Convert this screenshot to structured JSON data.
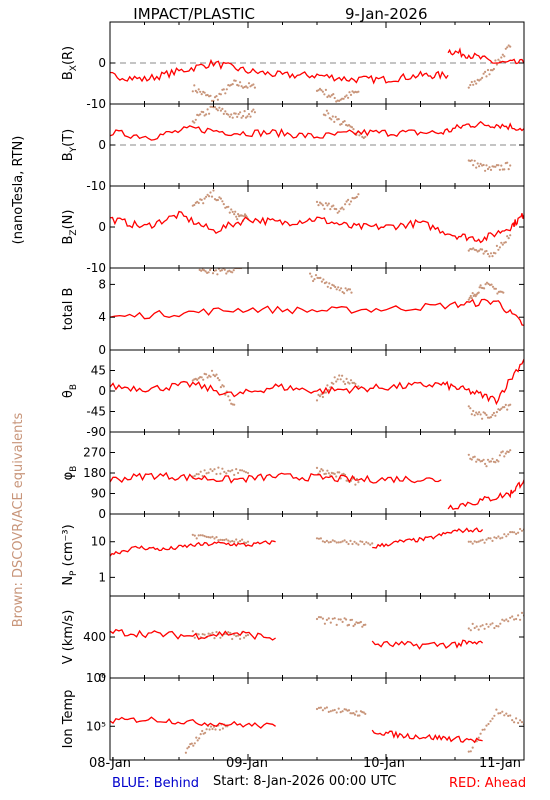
{
  "header": {
    "instrument": "IMPACT/PLASTIC",
    "date": "9-Jan-2026"
  },
  "left_labels": {
    "units": "(nanoTesla, RTN)",
    "equivalents": "Brown: DSCOVR/ACE equivalents"
  },
  "footer": {
    "blue_label": "BLUE: Behind",
    "start_label": "Start:  8-Jan-2026 00:00 UTC",
    "red_label": "RED: Ahead"
  },
  "colors": {
    "ahead": "#ff0000",
    "dscovr": "#c8957a",
    "behind": "#0000cc",
    "axis": "#000000"
  },
  "chart_data": {
    "type": "line",
    "x_axis": {
      "ticks": [
        "08-Jan",
        "09-Jan",
        "10-Jan",
        "11-Jan"
      ],
      "range_days": [
        0,
        3
      ]
    },
    "panels": [
      {
        "id": "bx",
        "ylabel": "B",
        "ylabel_sub": "X",
        "ylabel_suffix": "(R)",
        "ylim": [
          -10,
          10
        ],
        "yticks": [
          "0",
          "-10"
        ],
        "ytick_values": [
          0,
          -10
        ],
        "zero_line": true,
        "ahead_segments": [
          {
            "x": [
              0.0,
              0.25,
              0.5,
              0.75,
              1.0,
              1.25,
              1.5,
              1.75,
              2.0,
              2.25,
              2.45
            ],
            "y": [
              -3,
              -4,
              -2,
              0,
              -2,
              -3,
              -3,
              -4,
              -4,
              -3,
              -3
            ]
          },
          {
            "x": [
              2.45,
              2.6,
              2.8,
              3.0
            ],
            "y": [
              3,
              2,
              0,
              0
            ]
          }
        ],
        "dscovr_segments": [
          {
            "x": [
              0.6,
              0.75,
              0.9,
              1.05
            ],
            "y": [
              -6,
              -9,
              -5,
              -6
            ]
          },
          {
            "x": [
              1.5,
              1.65,
              1.8
            ],
            "y": [
              -6,
              -9,
              -7
            ]
          },
          {
            "x": [
              2.6,
              2.75,
              2.9
            ],
            "y": [
              -6,
              -2,
              4
            ]
          }
        ]
      },
      {
        "id": "by",
        "ylabel": "B",
        "ylabel_sub": "Y",
        "ylabel_suffix": "(T)",
        "ylim": [
          -10,
          10
        ],
        "yticks": [
          "0",
          "-10"
        ],
        "ytick_values": [
          0,
          -10
        ],
        "zero_line": true,
        "ahead_segments": [
          {
            "x": [
              0.0,
              0.3,
              0.6,
              0.9,
              1.2,
              1.5,
              1.8,
              2.1,
              2.4,
              2.6,
              2.8,
              3.0
            ],
            "y": [
              3,
              2,
              4,
              3,
              3,
              2,
              3,
              3,
              3,
              5,
              5,
              4
            ]
          }
        ],
        "dscovr_segments": [
          {
            "x": [
              0.6,
              0.75,
              0.9,
              1.05
            ],
            "y": [
              6,
              9,
              7,
              8
            ]
          },
          {
            "x": [
              1.55,
              1.7,
              1.85
            ],
            "y": [
              8,
              5,
              2
            ]
          },
          {
            "x": [
              2.6,
              2.75,
              2.9
            ],
            "y": [
              -4,
              -6,
              -5
            ]
          }
        ]
      },
      {
        "id": "bz",
        "ylabel": "B",
        "ylabel_sub": "Z",
        "ylabel_suffix": "(N)",
        "ylim": [
          -10,
          10
        ],
        "yticks": [
          "0",
          "-10"
        ],
        "ytick_values": [
          0,
          -10
        ],
        "zero_line": false,
        "ahead_segments": [
          {
            "x": [
              0.0,
              0.25,
              0.5,
              0.75,
              1.0,
              1.25,
              1.5,
              1.75,
              2.0,
              2.25,
              2.5,
              2.7,
              2.9,
              3.0
            ],
            "y": [
              2,
              0,
              3,
              -1,
              2,
              1,
              2,
              0,
              0,
              1,
              -2,
              -3,
              0,
              3
            ]
          }
        ],
        "dscovr_segments": [
          {
            "x": [
              0.6,
              0.75,
              0.9,
              1.0
            ],
            "y": [
              5,
              8,
              3,
              2
            ]
          },
          {
            "x": [
              1.5,
              1.65,
              1.8
            ],
            "y": [
              6,
              4,
              8
            ]
          },
          {
            "x": [
              2.6,
              2.75,
              2.9
            ],
            "y": [
              -5,
              -7,
              -2
            ]
          }
        ]
      },
      {
        "id": "btotal",
        "ylabel": "total B",
        "ylim": [
          0,
          10
        ],
        "yticks": [
          "8",
          "4",
          "0"
        ],
        "ytick_values": [
          8,
          4,
          0
        ],
        "zero_line": false,
        "ahead_segments": [
          {
            "x": [
              0.0,
              0.5,
              1.0,
              1.5,
              2.0,
              2.5,
              2.8,
              3.0
            ],
            "y": [
              4,
              4.5,
              5,
              4.8,
              5,
              5.5,
              6,
              3
            ]
          }
        ],
        "dscovr_segments": [
          {
            "x": [
              0.65,
              0.8,
              0.95
            ],
            "y": [
              10,
              9.5,
              10
            ]
          },
          {
            "x": [
              1.45,
              1.6,
              1.75
            ],
            "y": [
              9,
              8,
              7
            ]
          },
          {
            "x": [
              2.6,
              2.7,
              2.85
            ],
            "y": [
              6,
              8,
              7
            ]
          }
        ]
      },
      {
        "id": "theta",
        "ylabel": "θ",
        "ylabel_sub": "B",
        "ylim": [
          -90,
          90
        ],
        "yticks": [
          "45",
          "0",
          "-45",
          "-90"
        ],
        "ytick_values": [
          45,
          0,
          -45,
          -90
        ],
        "zero_line": false,
        "ahead_segments": [
          {
            "x": [
              0.0,
              0.3,
              0.6,
              0.9,
              1.2,
              1.5,
              1.8,
              2.1,
              2.4,
              2.6,
              2.8,
              3.0
            ],
            "y": [
              10,
              5,
              15,
              -10,
              10,
              0,
              5,
              10,
              15,
              0,
              -20,
              70
            ]
          }
        ],
        "dscovr_segments": [
          {
            "x": [
              0.6,
              0.75,
              0.9
            ],
            "y": [
              20,
              40,
              -30
            ]
          },
          {
            "x": [
              1.5,
              1.65,
              1.8
            ],
            "y": [
              -20,
              30,
              10
            ]
          },
          {
            "x": [
              2.6,
              2.75,
              2.9
            ],
            "y": [
              -40,
              -60,
              -30
            ]
          }
        ]
      },
      {
        "id": "phi",
        "ylabel": "φ",
        "ylabel_sub": "B",
        "ylim": [
          0,
          360
        ],
        "yticks": [
          "270",
          "180",
          "90",
          "0"
        ],
        "ytick_values": [
          270,
          180,
          90,
          0
        ],
        "zero_line": false,
        "ahead_segments": [
          {
            "x": [
              0.0,
              0.3,
              0.6,
              0.9,
              1.2,
              1.5,
              1.8,
              2.1,
              2.4
            ],
            "y": [
              150,
              170,
              160,
              150,
              165,
              160,
              150,
              155,
              150
            ]
          },
          {
            "x": [
              2.45,
              2.7,
              2.9,
              3.0
            ],
            "y": [
              30,
              60,
              90,
              150
            ]
          }
        ],
        "dscovr_segments": [
          {
            "x": [
              0.6,
              0.8,
              1.0
            ],
            "y": [
              170,
              190,
              180
            ]
          },
          {
            "x": [
              1.5,
              1.65,
              1.8
            ],
            "y": [
              190,
              170,
              140
            ]
          },
          {
            "x": [
              2.6,
              2.75,
              2.9
            ],
            "y": [
              260,
              220,
              280
            ]
          }
        ]
      },
      {
        "id": "np",
        "ylabel": "N",
        "ylabel_sub": "P",
        "ylabel_suffix": " (cm⁻³)",
        "scale": "log",
        "ylim": [
          0.3,
          60
        ],
        "yticks": [
          "10",
          "1"
        ],
        "ytick_values": [
          10,
          1
        ],
        "zero_line": false,
        "ahead_segments": [
          {
            "x": [
              0.0,
              0.2,
              0.4,
              0.6,
              0.8,
              1.0,
              1.2
            ],
            "y": [
              4.5,
              7,
              6,
              8,
              9,
              8,
              10
            ]
          },
          {
            "x": [
              1.9,
              2.1,
              2.3,
              2.5,
              2.7
            ],
            "y": [
              7,
              10,
              12,
              20,
              22
            ]
          }
        ],
        "dscovr_segments": [
          {
            "x": [
              0.6,
              0.8,
              1.0
            ],
            "y": [
              14,
              12,
              10
            ]
          },
          {
            "x": [
              1.5,
              1.7,
              1.9
            ],
            "y": [
              11,
              10,
              9
            ]
          },
          {
            "x": [
              2.6,
              2.8,
              3.0
            ],
            "y": [
              9,
              12,
              22
            ]
          }
        ]
      },
      {
        "id": "v",
        "ylabel": "V (km/s)",
        "ylim": [
          0,
          800
        ],
        "yticks": [
          "400",
          "0"
        ],
        "ytick_values": [
          400,
          0
        ],
        "zero_line": false,
        "ahead_segments": [
          {
            "x": [
              0.0,
              0.3,
              0.6,
              0.9,
              1.2
            ],
            "y": [
              450,
              430,
              410,
              440,
              390
            ]
          },
          {
            "x": [
              1.9,
              2.2,
              2.5,
              2.7
            ],
            "y": [
              330,
              320,
              330,
              340
            ]
          }
        ],
        "dscovr_segments": [
          {
            "x": [
              0.6,
              0.8,
              1.0
            ],
            "y": [
              430,
              410,
              420
            ]
          },
          {
            "x": [
              1.5,
              1.7,
              1.85
            ],
            "y": [
              560,
              550,
              520
            ]
          },
          {
            "x": [
              2.6,
              2.8,
              3.0
            ],
            "y": [
              490,
              520,
              610
            ]
          }
        ]
      },
      {
        "id": "temp",
        "ylabel": "Ion Temp",
        "scale": "log",
        "ylim": [
          20000,
          1000000
        ],
        "yticks": [
          "10⁶",
          "10⁵"
        ],
        "ytick_values": [
          1000000,
          100000
        ],
        "zero_line": false,
        "ahead_segments": [
          {
            "x": [
              0.0,
              0.3,
              0.6,
              0.9,
              1.2
            ],
            "y": [
              130000,
              140000,
              120000,
              110000,
              100000
            ]
          },
          {
            "x": [
              1.9,
              2.1,
              2.3,
              2.5,
              2.7
            ],
            "y": [
              80000,
              65000,
              60000,
              55000,
              50000
            ]
          }
        ],
        "dscovr_segments": [
          {
            "x": [
              0.55,
              0.7,
              0.85
            ],
            "y": [
              30000,
              90000,
              100000
            ]
          },
          {
            "x": [
              1.5,
              1.7,
              1.85
            ],
            "y": [
              250000,
              200000,
              180000
            ]
          },
          {
            "x": [
              2.6,
              2.8,
              3.0
            ],
            "y": [
              30000,
              200000,
              110000
            ]
          }
        ]
      }
    ]
  }
}
